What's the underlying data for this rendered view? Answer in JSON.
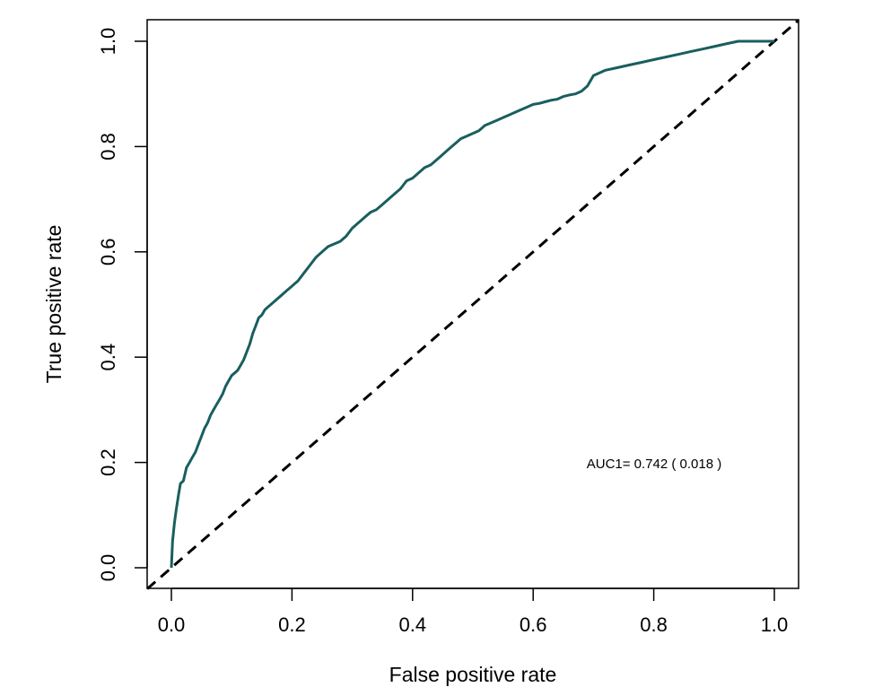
{
  "chart_data": {
    "type": "line",
    "xlabel": "False positive rate",
    "ylabel": "True positive rate",
    "xlim": [
      0,
      1
    ],
    "ylim": [
      0,
      1
    ],
    "x_ticks": [
      "0.0",
      "0.2",
      "0.4",
      "0.6",
      "0.8",
      "1.0"
    ],
    "y_ticks": [
      "0.0",
      "0.2",
      "0.4",
      "0.6",
      "0.8",
      "1.0"
    ],
    "grid": false,
    "legend": "none",
    "annotation": "AUC1= 0.742 ( 0.018 )",
    "colors": {
      "roc": "#1a5e5e",
      "reference": "#000000"
    },
    "series": [
      {
        "style": "solid",
        "x": [
          0.0,
          0.002,
          0.005,
          0.008,
          0.012,
          0.015,
          0.02,
          0.025,
          0.03,
          0.035,
          0.04,
          0.045,
          0.05,
          0.055,
          0.06,
          0.065,
          0.07,
          0.075,
          0.08,
          0.085,
          0.09,
          0.095,
          0.1,
          0.105,
          0.11,
          0.115,
          0.12,
          0.125,
          0.13,
          0.135,
          0.14,
          0.145,
          0.15,
          0.155,
          0.16,
          0.165,
          0.17,
          0.175,
          0.18,
          0.19,
          0.2,
          0.21,
          0.22,
          0.23,
          0.24,
          0.25,
          0.26,
          0.27,
          0.28,
          0.29,
          0.3,
          0.31,
          0.32,
          0.33,
          0.34,
          0.35,
          0.36,
          0.37,
          0.38,
          0.39,
          0.4,
          0.41,
          0.42,
          0.43,
          0.44,
          0.45,
          0.46,
          0.47,
          0.48,
          0.49,
          0.5,
          0.51,
          0.52,
          0.53,
          0.54,
          0.55,
          0.56,
          0.57,
          0.58,
          0.59,
          0.6,
          0.61,
          0.62,
          0.63,
          0.64,
          0.65,
          0.66,
          0.67,
          0.68,
          0.69,
          0.7,
          0.72,
          0.74,
          0.76,
          0.78,
          0.8,
          0.82,
          0.84,
          0.86,
          0.88,
          0.9,
          0.92,
          0.94,
          0.96,
          0.98,
          1.0
        ],
        "y": [
          0.0,
          0.05,
          0.085,
          0.11,
          0.14,
          0.16,
          0.165,
          0.19,
          0.2,
          0.21,
          0.22,
          0.235,
          0.25,
          0.265,
          0.275,
          0.29,
          0.3,
          0.31,
          0.32,
          0.33,
          0.345,
          0.355,
          0.365,
          0.37,
          0.375,
          0.385,
          0.395,
          0.41,
          0.425,
          0.445,
          0.46,
          0.475,
          0.48,
          0.49,
          0.495,
          0.5,
          0.505,
          0.51,
          0.515,
          0.525,
          0.535,
          0.545,
          0.56,
          0.575,
          0.59,
          0.6,
          0.61,
          0.615,
          0.62,
          0.63,
          0.645,
          0.655,
          0.665,
          0.675,
          0.68,
          0.69,
          0.7,
          0.71,
          0.72,
          0.735,
          0.74,
          0.75,
          0.76,
          0.765,
          0.775,
          0.785,
          0.795,
          0.805,
          0.815,
          0.82,
          0.825,
          0.83,
          0.84,
          0.845,
          0.85,
          0.855,
          0.86,
          0.865,
          0.87,
          0.875,
          0.88,
          0.882,
          0.885,
          0.888,
          0.89,
          0.895,
          0.898,
          0.9,
          0.905,
          0.915,
          0.935,
          0.945,
          0.95,
          0.955,
          0.96,
          0.965,
          0.97,
          0.975,
          0.98,
          0.985,
          0.99,
          0.995,
          1.0,
          1.0,
          1.0,
          1.0
        ]
      },
      {
        "style": "dashed",
        "x": [
          0,
          1
        ],
        "y": [
          0,
          1
        ]
      }
    ]
  }
}
